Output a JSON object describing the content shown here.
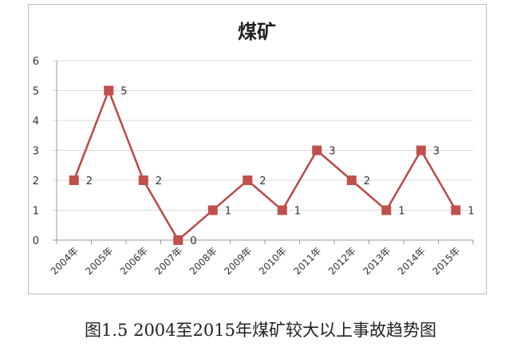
{
  "chart_data": {
    "type": "line",
    "title": "煤矿",
    "categories": [
      "2004年",
      "2005年",
      "2006年",
      "2007年",
      "2008年",
      "2009年",
      "2010年",
      "2011年",
      "2012年",
      "2013年",
      "2014年",
      "2015年"
    ],
    "values": [
      2,
      5,
      2,
      0,
      1,
      2,
      1,
      3,
      2,
      1,
      3,
      1
    ],
    "ylim": [
      0,
      6
    ],
    "yticks": [
      0,
      1,
      2,
      3,
      4,
      5,
      6
    ],
    "grid": true,
    "data_labels": true,
    "colors": {
      "line": "#b84a48",
      "marker": "#c0504d",
      "grid": "#d9d9d9"
    }
  },
  "caption": "图1.5 2004至2015年煤矿较大以上事故趋势图"
}
